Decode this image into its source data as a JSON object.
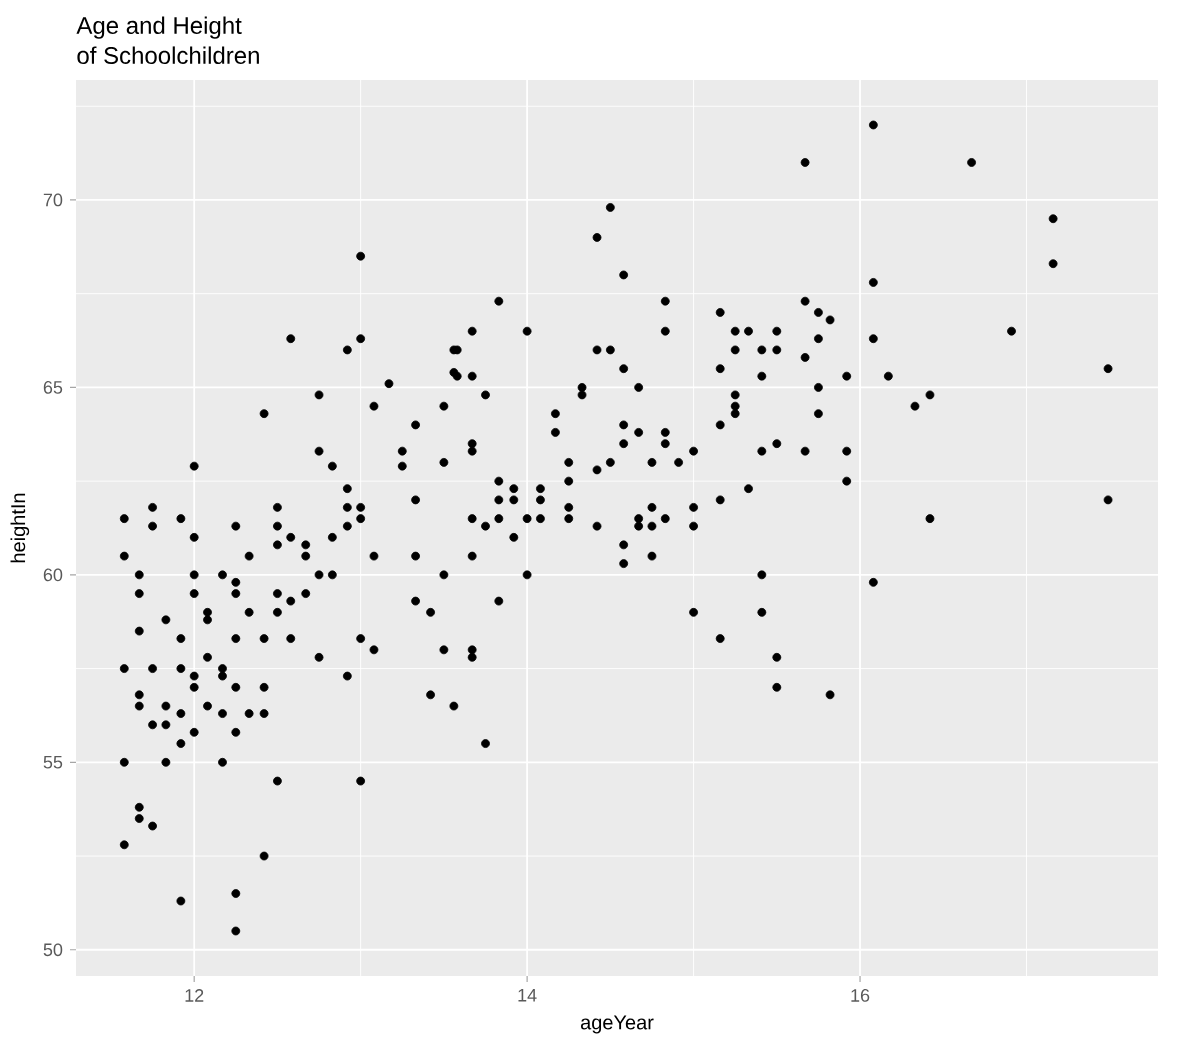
{
  "chart_data": {
    "type": "scatter",
    "title": "Age and Height",
    "subtitle": "of Schoolchildren",
    "xlabel": "ageYear",
    "ylabel": "heightIn",
    "xlim": [
      11.29,
      17.79
    ],
    "ylim": [
      49.3,
      73.2
    ],
    "xticks": [
      12,
      14,
      16
    ],
    "yticks": [
      50,
      55,
      60,
      65,
      70
    ],
    "grid": true,
    "series": [
      {
        "color": "#000000",
        "x": [
          11.58,
          11.75,
          11.92,
          11.75,
          11.58,
          12.0,
          12.25,
          12.5,
          12.5,
          12.58,
          12.5,
          12.67,
          12.67,
          12.33,
          12.83,
          12.92,
          12.92,
          13.0,
          13.0,
          12.92,
          12.75,
          12.83,
          12.0,
          13.25,
          13.25,
          13.5,
          13.33,
          13.08,
          13.33,
          13.5,
          12.75,
          12.83,
          11.67,
          12.0,
          12.17,
          12.25,
          12.25,
          11.67,
          12.0,
          12.5,
          12.58,
          12.67,
          12.5,
          12.33,
          12.08,
          12.08,
          11.83,
          11.67,
          11.92,
          12.25,
          12.42,
          12.58,
          13.0,
          13.08,
          13.5,
          12.75,
          12.08,
          11.58,
          11.75,
          11.92,
          12.0,
          12.17,
          12.17,
          12.0,
          12.25,
          12.42,
          12.92,
          11.67,
          11.67,
          11.83,
          11.92,
          12.08,
          12.17,
          12.33,
          12.42,
          11.75,
          11.83,
          12.0,
          12.25,
          11.92,
          11.58,
          11.83,
          12.17,
          12.5,
          13.0,
          13.42,
          13.33,
          13.42,
          13.56,
          11.67,
          11.67,
          11.75,
          11.58,
          12.42,
          11.92,
          12.25,
          12.25,
          13.0,
          12.58,
          13.0,
          12.92,
          13.56,
          13.56,
          13.17,
          12.75,
          12.42,
          13.08,
          13.5,
          13.33,
          15.67,
          14.5,
          14.42,
          14.58,
          13.83,
          14.83,
          15.67,
          15.75,
          15.16,
          13.67,
          14.0,
          14.83,
          15.25,
          15.33,
          15.5,
          15.75,
          13.58,
          14.42,
          14.5,
          15.25,
          15.41,
          15.5,
          15.67,
          14.58,
          13.58,
          13.67,
          15.16,
          15.41,
          13.75,
          14.33,
          14.33,
          14.67,
          15.75,
          15.25,
          15.25,
          15.25,
          15.75,
          14.17,
          14.17,
          14.58,
          14.67,
          14.83,
          15.16,
          13.67,
          13.67,
          14.58,
          14.83,
          15.0,
          15.41,
          15.5,
          15.67,
          14.25,
          14.42,
          14.5,
          14.75,
          14.91,
          13.83,
          14.25,
          13.92,
          14.08,
          15.33,
          13.83,
          13.92,
          14.08,
          15.16,
          14.25,
          14.75,
          15.0,
          13.67,
          13.83,
          14.0,
          14.08,
          14.25,
          14.67,
          14.83,
          13.75,
          14.42,
          14.67,
          14.75,
          15.0,
          13.92,
          14.58,
          13.67,
          14.75,
          14.58,
          14.0,
          15.41,
          13.83,
          15.0,
          15.41,
          15.16,
          15.5,
          15.5,
          13.67,
          13.67,
          13.75,
          16.08,
          16.67,
          17.16,
          17.16,
          16.08,
          15.82,
          16.08,
          16.91,
          15.92,
          16.17,
          17.49,
          16.42,
          16.33,
          15.92,
          15.92,
          16.42,
          17.49,
          16.08,
          15.82
        ],
        "values": [
          61.5,
          61.8,
          61.5,
          61.3,
          60.5,
          61.0,
          61.3,
          61.8,
          61.3,
          61.0,
          60.8,
          60.8,
          60.5,
          60.5,
          61.0,
          62.3,
          61.8,
          61.8,
          61.5,
          61.3,
          63.3,
          62.9,
          62.9,
          63.3,
          62.9,
          63.0,
          62.0,
          60.5,
          60.5,
          60.0,
          60.0,
          60.0,
          60.0,
          60.0,
          60.0,
          59.8,
          59.5,
          59.5,
          59.5,
          59.5,
          59.3,
          59.5,
          59.0,
          59.0,
          59.0,
          58.8,
          58.8,
          58.5,
          58.3,
          58.3,
          58.3,
          58.3,
          58.3,
          58.0,
          58.0,
          57.8,
          57.8,
          57.5,
          57.5,
          57.5,
          57.3,
          57.5,
          57.3,
          57.0,
          57.0,
          57.0,
          57.3,
          56.8,
          56.5,
          56.5,
          56.3,
          56.5,
          56.3,
          56.3,
          56.3,
          56.0,
          56.0,
          55.8,
          55.8,
          55.5,
          55.0,
          55.0,
          55.0,
          54.5,
          54.5,
          56.8,
          59.3,
          59.0,
          56.5,
          53.8,
          53.5,
          53.3,
          52.8,
          52.5,
          51.3,
          51.5,
          50.5,
          68.5,
          66.3,
          66.3,
          66.0,
          66.0,
          65.4,
          65.1,
          64.8,
          64.3,
          64.5,
          64.5,
          64.0,
          71.0,
          69.8,
          69.0,
          68.0,
          67.3,
          67.3,
          67.3,
          67.0,
          67.0,
          66.5,
          66.5,
          66.5,
          66.5,
          66.5,
          66.5,
          66.3,
          66.0,
          66.0,
          66.0,
          66.0,
          66.0,
          66.0,
          65.8,
          65.5,
          65.3,
          65.3,
          65.5,
          65.3,
          64.8,
          65.0,
          64.8,
          65.0,
          65.0,
          64.8,
          64.5,
          64.3,
          64.3,
          64.3,
          63.8,
          64.0,
          63.8,
          63.8,
          64.0,
          63.5,
          63.3,
          63.5,
          63.5,
          63.3,
          63.3,
          63.5,
          63.3,
          63.0,
          62.8,
          63.0,
          63.0,
          63.0,
          62.5,
          62.5,
          62.3,
          62.3,
          62.3,
          62.0,
          62.0,
          62.0,
          62.0,
          61.8,
          61.8,
          61.8,
          61.5,
          61.5,
          61.5,
          61.5,
          61.5,
          61.5,
          61.5,
          61.3,
          61.3,
          61.3,
          61.3,
          61.3,
          61.0,
          60.8,
          60.5,
          60.5,
          60.3,
          60.0,
          60.0,
          59.3,
          59.0,
          59.0,
          58.3,
          57.8,
          57.0,
          58.0,
          57.8,
          55.5,
          72.0,
          71.0,
          69.5,
          68.3,
          67.8,
          66.8,
          66.3,
          66.5,
          65.3,
          65.3,
          65.5,
          64.8,
          64.5,
          63.3,
          62.5,
          61.5,
          62.0,
          59.8,
          56.8
        ]
      }
    ]
  }
}
